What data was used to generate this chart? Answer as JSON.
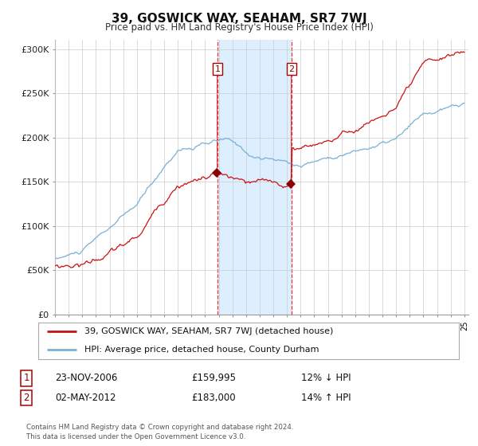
{
  "title": "39, GOSWICK WAY, SEAHAM, SR7 7WJ",
  "subtitle": "Price paid vs. HM Land Registry's House Price Index (HPI)",
  "legend_line1": "39, GOSWICK WAY, SEAHAM, SR7 7WJ (detached house)",
  "legend_line2": "HPI: Average price, detached house, County Durham",
  "annotation1_label": "1",
  "annotation1_date": "23-NOV-2006",
  "annotation1_price": "£159,995",
  "annotation1_hpi": "12% ↓ HPI",
  "annotation2_label": "2",
  "annotation2_date": "02-MAY-2012",
  "annotation2_price": "£183,000",
  "annotation2_hpi": "14% ↑ HPI",
  "footer": "Contains HM Land Registry data © Crown copyright and database right 2024.\nThis data is licensed under the Open Government Licence v3.0.",
  "hpi_color": "#7ab0d4",
  "price_color": "#cc1111",
  "marker_color": "#8b0000",
  "vline_color": "#ee3333",
  "shade_color": "#ddeeff",
  "background_color": "#ffffff",
  "grid_color": "#cccccc",
  "ylim": [
    0,
    310000
  ],
  "yticks": [
    0,
    50000,
    100000,
    150000,
    200000,
    250000,
    300000
  ],
  "ytick_labels": [
    "£0",
    "£50K",
    "£100K",
    "£150K",
    "£200K",
    "£250K",
    "£300K"
  ],
  "start_year": 1995,
  "end_year": 2025,
  "sale1_year": 2006.9,
  "sale2_year": 2012.33,
  "sale1_price": 159995,
  "sale2_price": 183000
}
